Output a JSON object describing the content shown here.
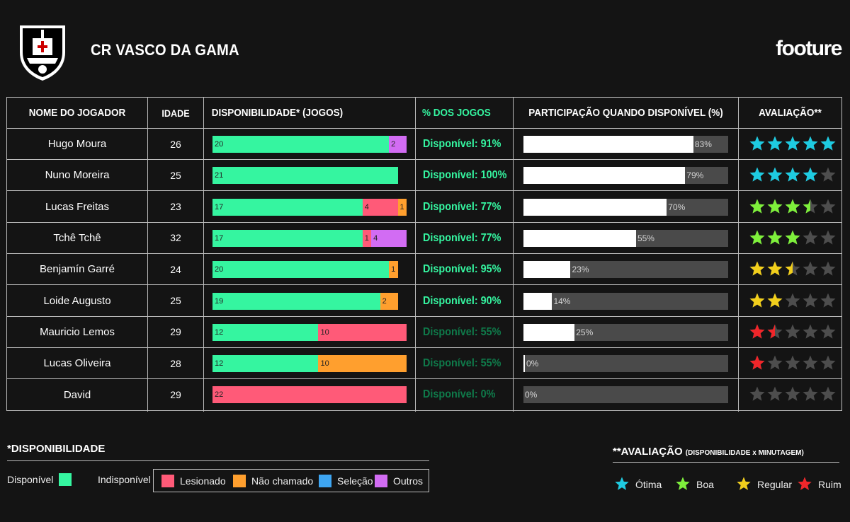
{
  "header": {
    "club": "CR VASCO DA GAMA",
    "brand": "footure"
  },
  "columns": {
    "name": "NOME DO JOGADOR",
    "age": "IDADE",
    "availability": "DISPONIBILIDADE* (JOGOS)",
    "pct": "% DOS JOGOS",
    "participation": "PARTICIPAÇÃO QUANDO DISPONÍVEL (%)",
    "rating": "AVALIAÇÃO**"
  },
  "colors": {
    "available": "#35f5a0",
    "injured": "#ff5a78",
    "not_called": "#ff9f2e",
    "national": "#3ea6f2",
    "other": "#d26cf3",
    "star_otima": "#1ecbe1",
    "star_boa": "#7ef03b",
    "star_regular": "#f2cf1c",
    "star_ruim": "#f0262a",
    "star_empty": "#4d4d4d"
  },
  "chart_data": {
    "type": "table",
    "scale_games": 22,
    "players": [
      {
        "name": "Hugo Moura",
        "age": "26",
        "segments": [
          {
            "type": "available",
            "value": 20
          },
          {
            "type": "other",
            "value": 2
          }
        ],
        "pct_text": "Disponível: 91%",
        "pct_bright": true,
        "participation": 83,
        "participation_label": "83%",
        "rating": 5,
        "rating_class": "otima"
      },
      {
        "name": "Nuno Moreira",
        "age": "25",
        "segments": [
          {
            "type": "available",
            "value": 21
          }
        ],
        "pct_text": "Disponível: 100%",
        "pct_bright": true,
        "participation": 79,
        "participation_label": "79%",
        "rating": 4,
        "rating_class": "otima"
      },
      {
        "name": "Lucas Freitas",
        "age": "23",
        "segments": [
          {
            "type": "available",
            "value": 17
          },
          {
            "type": "injured",
            "value": 4
          },
          {
            "type": "not_called",
            "value": 1
          }
        ],
        "pct_text": "Disponível: 77%",
        "pct_bright": true,
        "participation": 70,
        "participation_label": "70%",
        "rating": 3.5,
        "rating_class": "boa"
      },
      {
        "name": "Tchê Tchê",
        "age": "32",
        "segments": [
          {
            "type": "available",
            "value": 17
          },
          {
            "type": "injured",
            "value": 1
          },
          {
            "type": "other",
            "value": 4
          }
        ],
        "pct_text": "Disponível: 77%",
        "pct_bright": true,
        "participation": 55,
        "participation_label": "55%",
        "rating": 3,
        "rating_class": "boa"
      },
      {
        "name": "Benjamín Garré",
        "age": "24",
        "segments": [
          {
            "type": "available",
            "value": 20
          },
          {
            "type": "not_called",
            "value": 1
          }
        ],
        "pct_text": "Disponível: 95%",
        "pct_bright": true,
        "participation": 23,
        "participation_label": "23%",
        "rating": 2.5,
        "rating_class": "regular"
      },
      {
        "name": "Loide Augusto",
        "age": "25",
        "segments": [
          {
            "type": "available",
            "value": 19
          },
          {
            "type": "not_called",
            "value": 2
          }
        ],
        "pct_text": "Disponível: 90%",
        "pct_bright": true,
        "participation": 14,
        "participation_label": "14%",
        "rating": 2,
        "rating_class": "regular"
      },
      {
        "name": "Mauricio Lemos",
        "age": "29",
        "segments": [
          {
            "type": "available",
            "value": 12
          },
          {
            "type": "injured",
            "value": 10
          }
        ],
        "pct_text": "Disponível: 55%",
        "pct_bright": false,
        "participation": 25,
        "participation_label": "25%",
        "rating": 1.5,
        "rating_class": "ruim"
      },
      {
        "name": "Lucas Oliveira",
        "age": "28",
        "segments": [
          {
            "type": "available",
            "value": 12
          },
          {
            "type": "not_called",
            "value": 10
          }
        ],
        "pct_text": "Disponível: 55%",
        "pct_bright": false,
        "participation": 0,
        "participation_label": "0%",
        "rating": 1,
        "rating_class": "ruim"
      },
      {
        "name": "David",
        "age": "29",
        "segments": [
          {
            "type": "injured",
            "value": 22
          }
        ],
        "pct_text": "Disponível: 0%",
        "pct_bright": false,
        "participation": 0,
        "participation_label": "0%",
        "rating": 0,
        "rating_class": "ruim"
      }
    ]
  },
  "legend_availability": {
    "title": "*DISPONIBILIDADE",
    "available": "Disponível",
    "unavailable": "Indisponível",
    "injured": "Lesionado",
    "not_called": "Não chamado",
    "national": "Seleção",
    "other": "Outros"
  },
  "legend_rating": {
    "title": "**AVALIAÇÃO",
    "subtitle": "(DISPONIBILIDADE x MINUTAGEM)",
    "otima": "Ótima",
    "boa": "Boa",
    "regular": "Regular",
    "ruim": "Ruim"
  }
}
